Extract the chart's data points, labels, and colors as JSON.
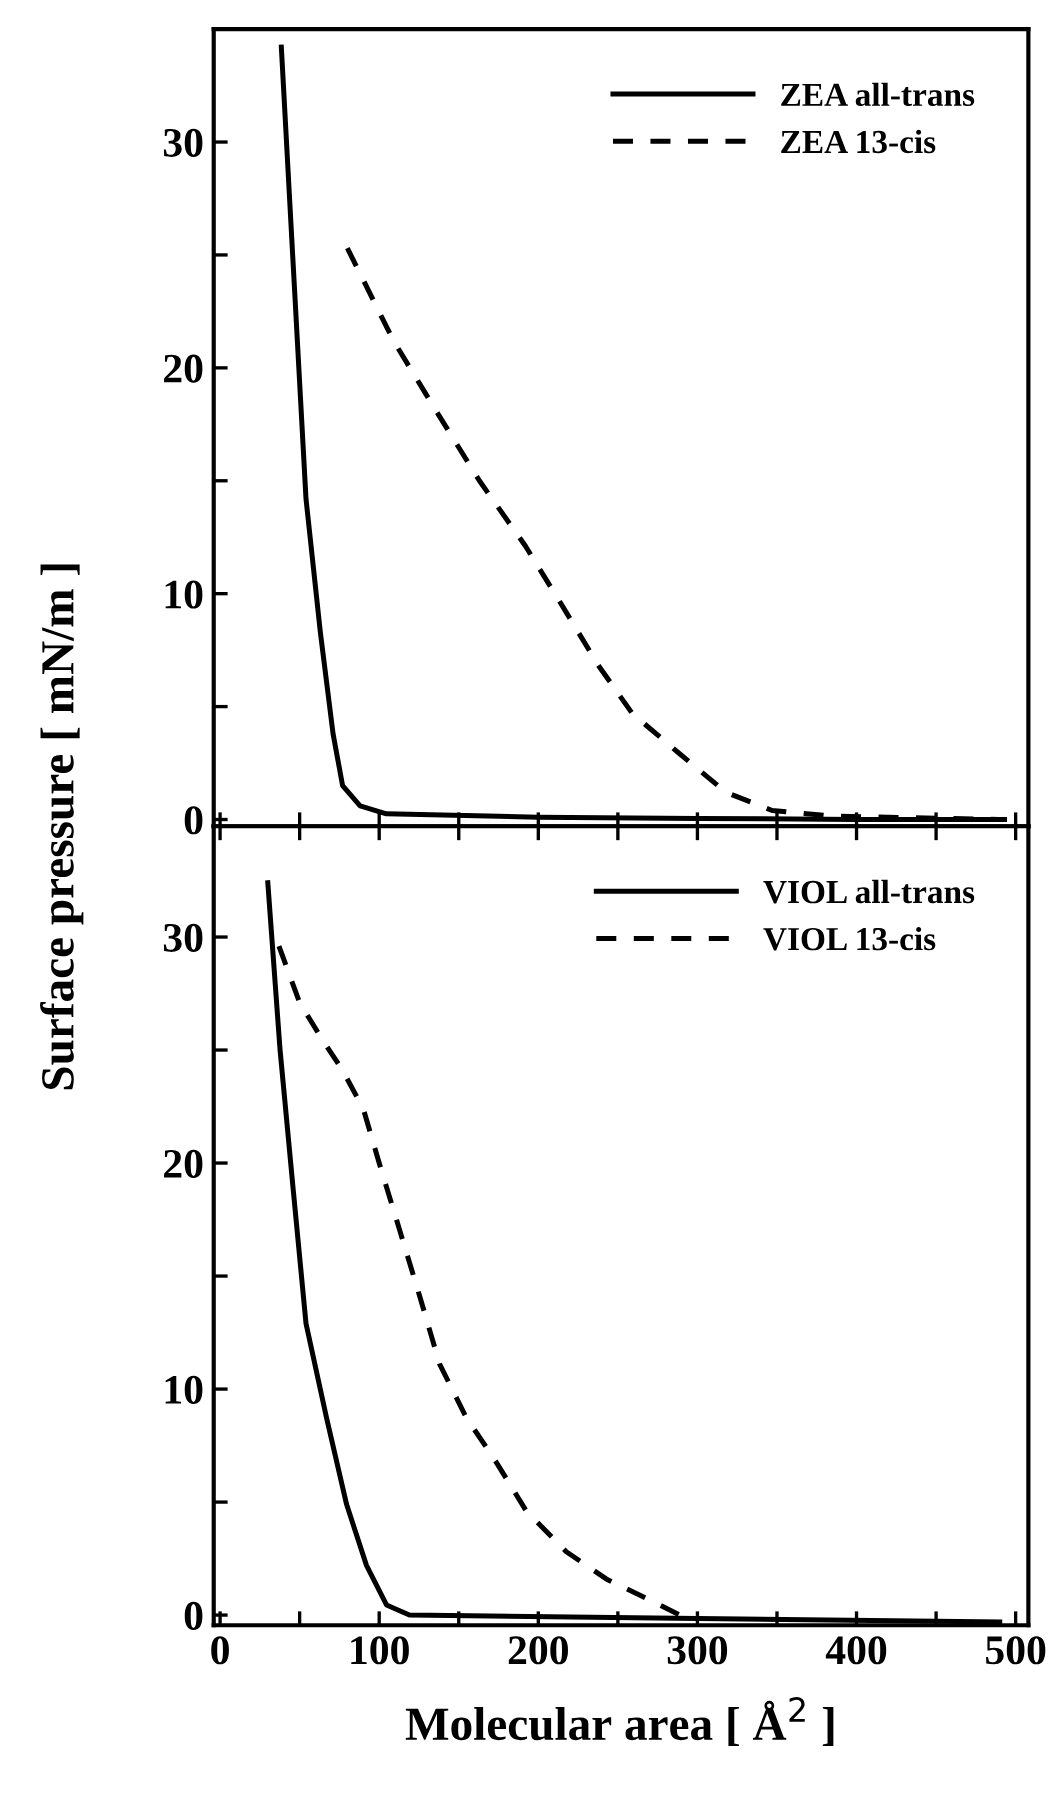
{
  "chart_data": [
    {
      "type": "line",
      "ylabel": "Surface pressure [ mN/m ]",
      "xlim": [
        -4,
        508
      ],
      "ylim": [
        -0.3,
        35
      ],
      "xticks": [
        {
          "value": 0,
          "label": null
        },
        {
          "value": 50,
          "label": null
        },
        {
          "value": 100,
          "label": null
        },
        {
          "value": 150,
          "label": null
        },
        {
          "value": 200,
          "label": null
        },
        {
          "value": 250,
          "label": null
        },
        {
          "value": 300,
          "label": null
        },
        {
          "value": 350,
          "label": null
        },
        {
          "value": 400,
          "label": null
        },
        {
          "value": 450,
          "label": null
        },
        {
          "value": 500,
          "label": null
        }
      ],
      "yticks": [
        0,
        {
          "value": 5,
          "label": null
        },
        10,
        {
          "value": 15,
          "label": null
        },
        20,
        {
          "value": 25,
          "label": null
        },
        30
      ],
      "tick_labels": "y",
      "legend": "top right",
      "grid": false,
      "series": [
        {
          "name": "ZEA all-trans",
          "color": "#000000",
          "line_style": "solid",
          "x": [
            38.5,
            46,
            54,
            63,
            71,
            77,
            88,
            104.5,
            200,
            300,
            400,
            493
          ],
          "values": [
            34.2,
            24.5,
            14.2,
            8.3,
            3.8,
            1.5,
            0.6,
            0.25,
            0.1,
            0.05,
            0,
            0
          ]
        },
        {
          "name": "ZEA 13-cis",
          "color": "#000000",
          "line_style": "dashed",
          "x": [
            80,
            109,
            134,
            163,
            192,
            213,
            238,
            259,
            289,
            318,
            347,
            385,
            489
          ],
          "values": [
            25.3,
            21.2,
            18.3,
            15.0,
            12.1,
            9.7,
            6.8,
            4.7,
            2.9,
            1.2,
            0.4,
            0.15,
            0
          ]
        }
      ]
    },
    {
      "type": "line",
      "xlabel": "Molecular area [ Å$^{2}$ ]",
      "xlim": [
        -4,
        508
      ],
      "ylim": [
        -0.45,
        34.9
      ],
      "xticks": [
        0,
        {
          "value": 50,
          "label": null
        },
        100,
        {
          "value": 150,
          "label": null
        },
        200,
        {
          "value": 250,
          "label": null
        },
        300,
        {
          "value": 350,
          "label": null
        },
        400,
        {
          "value": 450,
          "label": null
        },
        500
      ],
      "yticks": [
        0,
        {
          "value": 5,
          "label": null
        },
        10,
        {
          "value": 15,
          "label": null
        },
        20,
        {
          "value": 25,
          "label": null
        },
        30
      ],
      "legend": "top right",
      "grid": false,
      "series": [
        {
          "name": "VIOL all-trans",
          "color": "#000000",
          "line_style": "solid",
          "x": [
            30,
            37.7,
            46,
            54,
            67,
            79.5,
            92,
            104.6,
            119,
            300,
            490
          ],
          "values": [
            32.4,
            25.0,
            18.8,
            12.9,
            8.7,
            4.9,
            2.2,
            0.45,
            0,
            -0.15,
            -0.3
          ]
        },
        {
          "name": "VIOL 13-cis",
          "color": "#000000",
          "line_style": "dashed",
          "x": [
            37,
            50,
            63,
            77,
            90,
            100,
            113,
            125.5,
            138,
            155,
            171.5,
            192.5,
            217.6,
            242.7,
            272,
            289
          ],
          "values": [
            29.6,
            27.1,
            25.6,
            24.1,
            22.4,
            20.0,
            17.0,
            14.1,
            11.1,
            8.7,
            7.0,
            4.6,
            2.8,
            1.6,
            0.6,
            0
          ]
        }
      ]
    }
  ]
}
